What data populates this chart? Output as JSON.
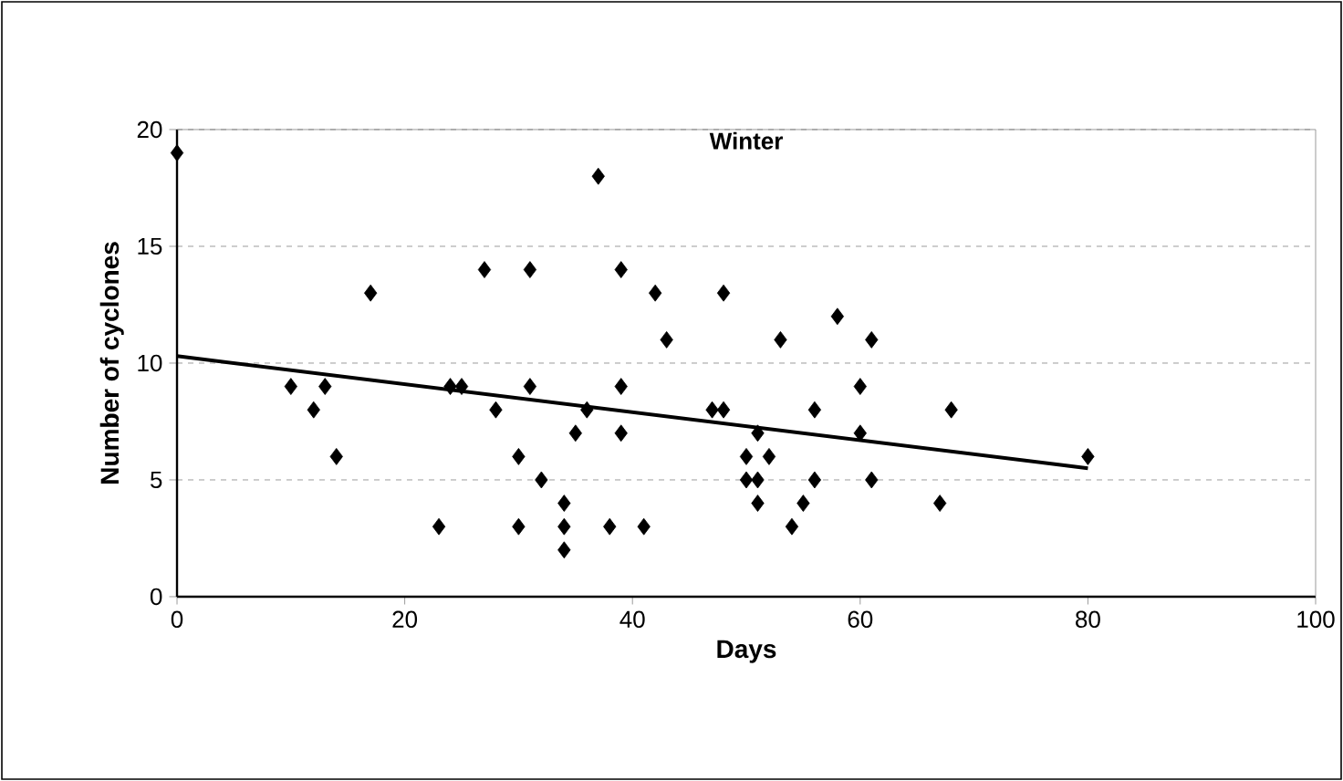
{
  "chart_data": {
    "type": "scatter",
    "title": "Winter",
    "xlabel": "Days",
    "ylabel": "Number of cyclones",
    "xlim": [
      0,
      100
    ],
    "xticks": [
      0,
      20,
      40,
      60,
      80,
      100
    ],
    "ylim": [
      0,
      20
    ],
    "yticks": [
      0,
      5,
      10,
      15,
      20
    ],
    "grid": "y",
    "series": [
      {
        "type": "scatter",
        "color": "#000000",
        "marker": "diamond",
        "x": [
          0,
          10,
          12,
          13,
          14,
          17,
          23,
          24,
          25,
          27,
          28,
          30,
          30,
          31,
          31,
          32,
          34,
          34,
          34,
          35,
          36,
          37,
          38,
          39,
          39,
          39,
          41,
          42,
          43,
          47,
          48,
          48,
          50,
          50,
          51,
          51,
          51,
          52,
          53,
          54,
          55,
          56,
          56,
          58,
          60,
          60,
          61,
          61,
          67,
          68,
          80
        ],
        "values": [
          19,
          9,
          8,
          9,
          6,
          13,
          3,
          9,
          9,
          14,
          8,
          6,
          3,
          14,
          9,
          5,
          4,
          3,
          2,
          7,
          8,
          18,
          3,
          14,
          9,
          7,
          3,
          13,
          11,
          8,
          13,
          8,
          6,
          5,
          7,
          5,
          4,
          6,
          11,
          3,
          4,
          8,
          5,
          12,
          9,
          7,
          11,
          5,
          4,
          8,
          6
        ]
      },
      {
        "type": "line",
        "color": "#000000",
        "marker": "none",
        "x": [
          0,
          80
        ],
        "values": [
          10.3,
          5.5
        ]
      }
    ]
  }
}
